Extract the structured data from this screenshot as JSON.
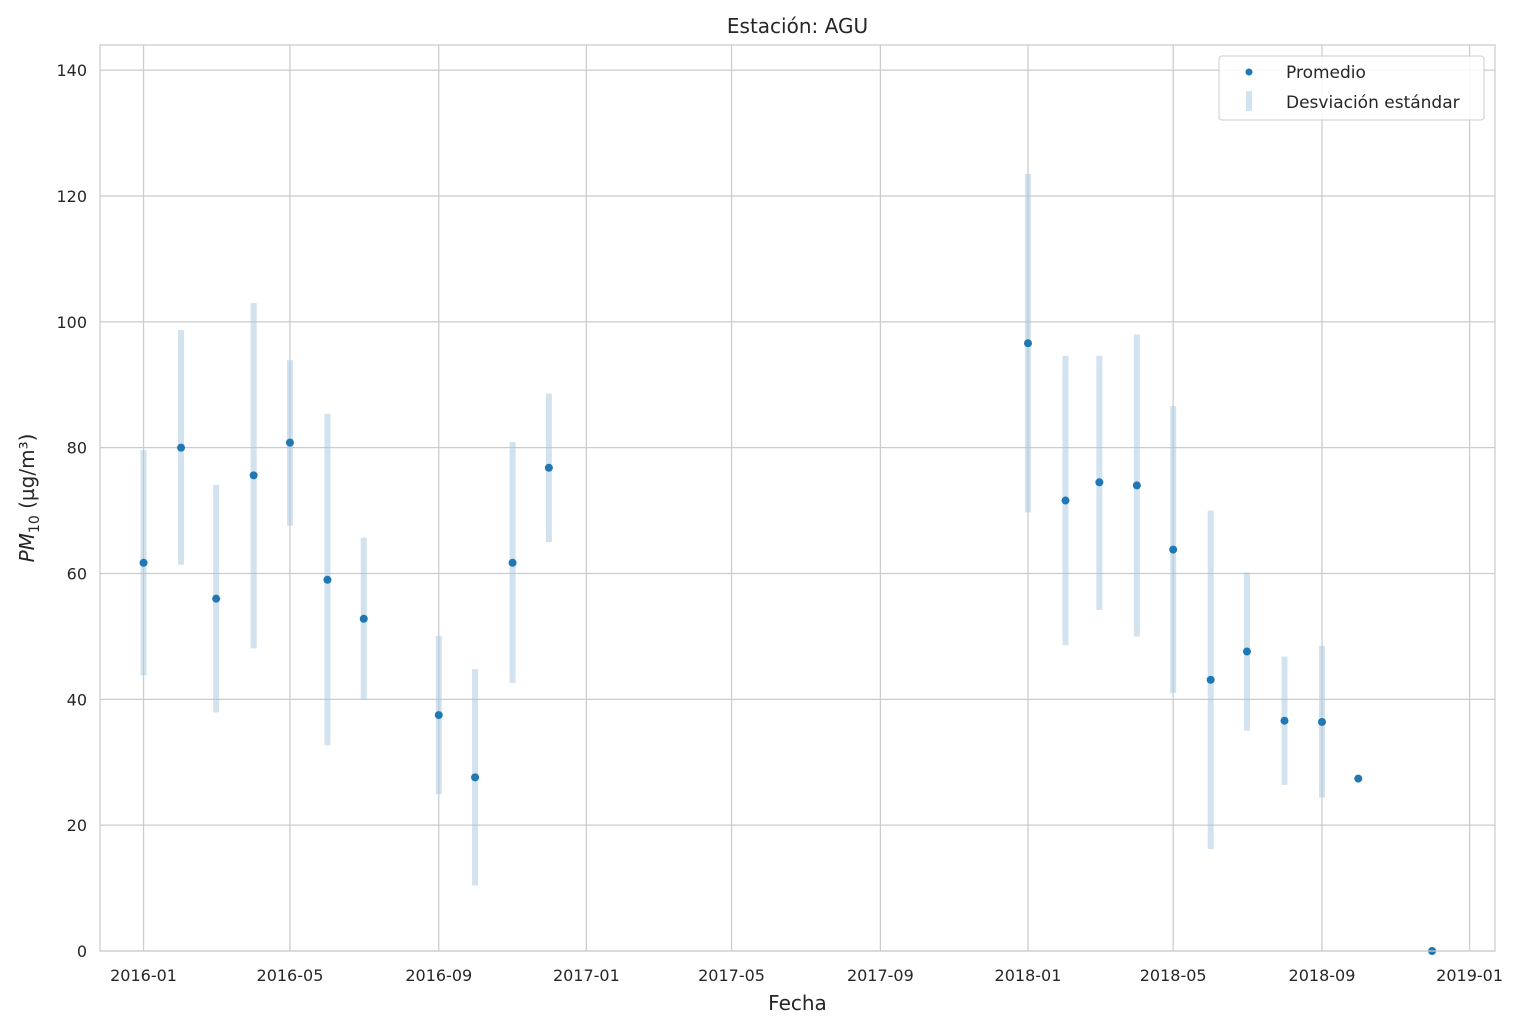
{
  "chart_data": {
    "type": "scatter",
    "title": "Estación: AGU",
    "xlabel": "Fecha",
    "ylabel": "PM10 (µg/m³)",
    "ylabel_main": "PM",
    "ylabel_sub": "10",
    "ylabel_unit": " (µg/m³)",
    "xlim": [
      "2015-11-26",
      "2019-01-22"
    ],
    "ylim": [
      0,
      144
    ],
    "grid": true,
    "legend_position": "top-right",
    "x_ticks": [
      "2016-01",
      "2016-05",
      "2016-09",
      "2017-01",
      "2017-05",
      "2017-09",
      "2018-01",
      "2018-05",
      "2018-09",
      "2019-01"
    ],
    "y_ticks": [
      0,
      20,
      40,
      60,
      80,
      100,
      120,
      140
    ],
    "series": [
      {
        "name": "Promedio",
        "color": "#1f77b4",
        "points": [
          {
            "x": "2016-01-01",
            "y": 61.7
          },
          {
            "x": "2016-02-01",
            "y": 80.0
          },
          {
            "x": "2016-03-01",
            "y": 56.0
          },
          {
            "x": "2016-04-01",
            "y": 75.6
          },
          {
            "x": "2016-05-01",
            "y": 80.8
          },
          {
            "x": "2016-06-01",
            "y": 59.0
          },
          {
            "x": "2016-07-01",
            "y": 52.8
          },
          {
            "x": "2016-09-01",
            "y": 37.5
          },
          {
            "x": "2016-10-01",
            "y": 27.6
          },
          {
            "x": "2016-11-01",
            "y": 61.7
          },
          {
            "x": "2016-12-01",
            "y": 76.8
          },
          {
            "x": "2018-01-01",
            "y": 96.6
          },
          {
            "x": "2018-02-01",
            "y": 71.6
          },
          {
            "x": "2018-03-01",
            "y": 74.5
          },
          {
            "x": "2018-04-01",
            "y": 74.0
          },
          {
            "x": "2018-05-01",
            "y": 63.8
          },
          {
            "x": "2018-06-01",
            "y": 43.1
          },
          {
            "x": "2018-07-01",
            "y": 47.6
          },
          {
            "x": "2018-08-01",
            "y": 36.6
          },
          {
            "x": "2018-09-01",
            "y": 36.4
          },
          {
            "x": "2018-10-01",
            "y": 27.4
          },
          {
            "x": "2018-12-01",
            "y": 0.0
          }
        ]
      },
      {
        "name": "Desviación estándar",
        "color": "#a6c8e0",
        "bars": [
          {
            "x": "2016-01-01",
            "low": 43.8,
            "high": 79.6
          },
          {
            "x": "2016-02-01",
            "low": 61.4,
            "high": 98.7
          },
          {
            "x": "2016-03-01",
            "low": 37.9,
            "high": 74.1
          },
          {
            "x": "2016-04-01",
            "low": 48.1,
            "high": 103.0
          },
          {
            "x": "2016-05-01",
            "low": 67.6,
            "high": 93.9
          },
          {
            "x": "2016-06-01",
            "low": 32.7,
            "high": 85.4
          },
          {
            "x": "2016-07-01",
            "low": 40.0,
            "high": 65.7
          },
          {
            "x": "2016-09-01",
            "low": 24.9,
            "high": 50.1
          },
          {
            "x": "2016-10-01",
            "low": 10.4,
            "high": 44.8
          },
          {
            "x": "2016-11-01",
            "low": 42.6,
            "high": 80.9
          },
          {
            "x": "2016-12-01",
            "low": 65.0,
            "high": 88.6
          },
          {
            "x": "2018-01-01",
            "low": 69.7,
            "high": 123.5
          },
          {
            "x": "2018-02-01",
            "low": 48.6,
            "high": 94.6
          },
          {
            "x": "2018-03-01",
            "low": 54.2,
            "high": 94.6
          },
          {
            "x": "2018-04-01",
            "low": 50.0,
            "high": 98.0
          },
          {
            "x": "2018-05-01",
            "low": 41.0,
            "high": 86.6
          },
          {
            "x": "2018-06-01",
            "low": 16.2,
            "high": 70.0
          },
          {
            "x": "2018-07-01",
            "low": 35.0,
            "high": 60.2
          },
          {
            "x": "2018-08-01",
            "low": 26.4,
            "high": 46.8
          },
          {
            "x": "2018-09-01",
            "low": 24.4,
            "high": 48.5
          }
        ]
      }
    ]
  }
}
